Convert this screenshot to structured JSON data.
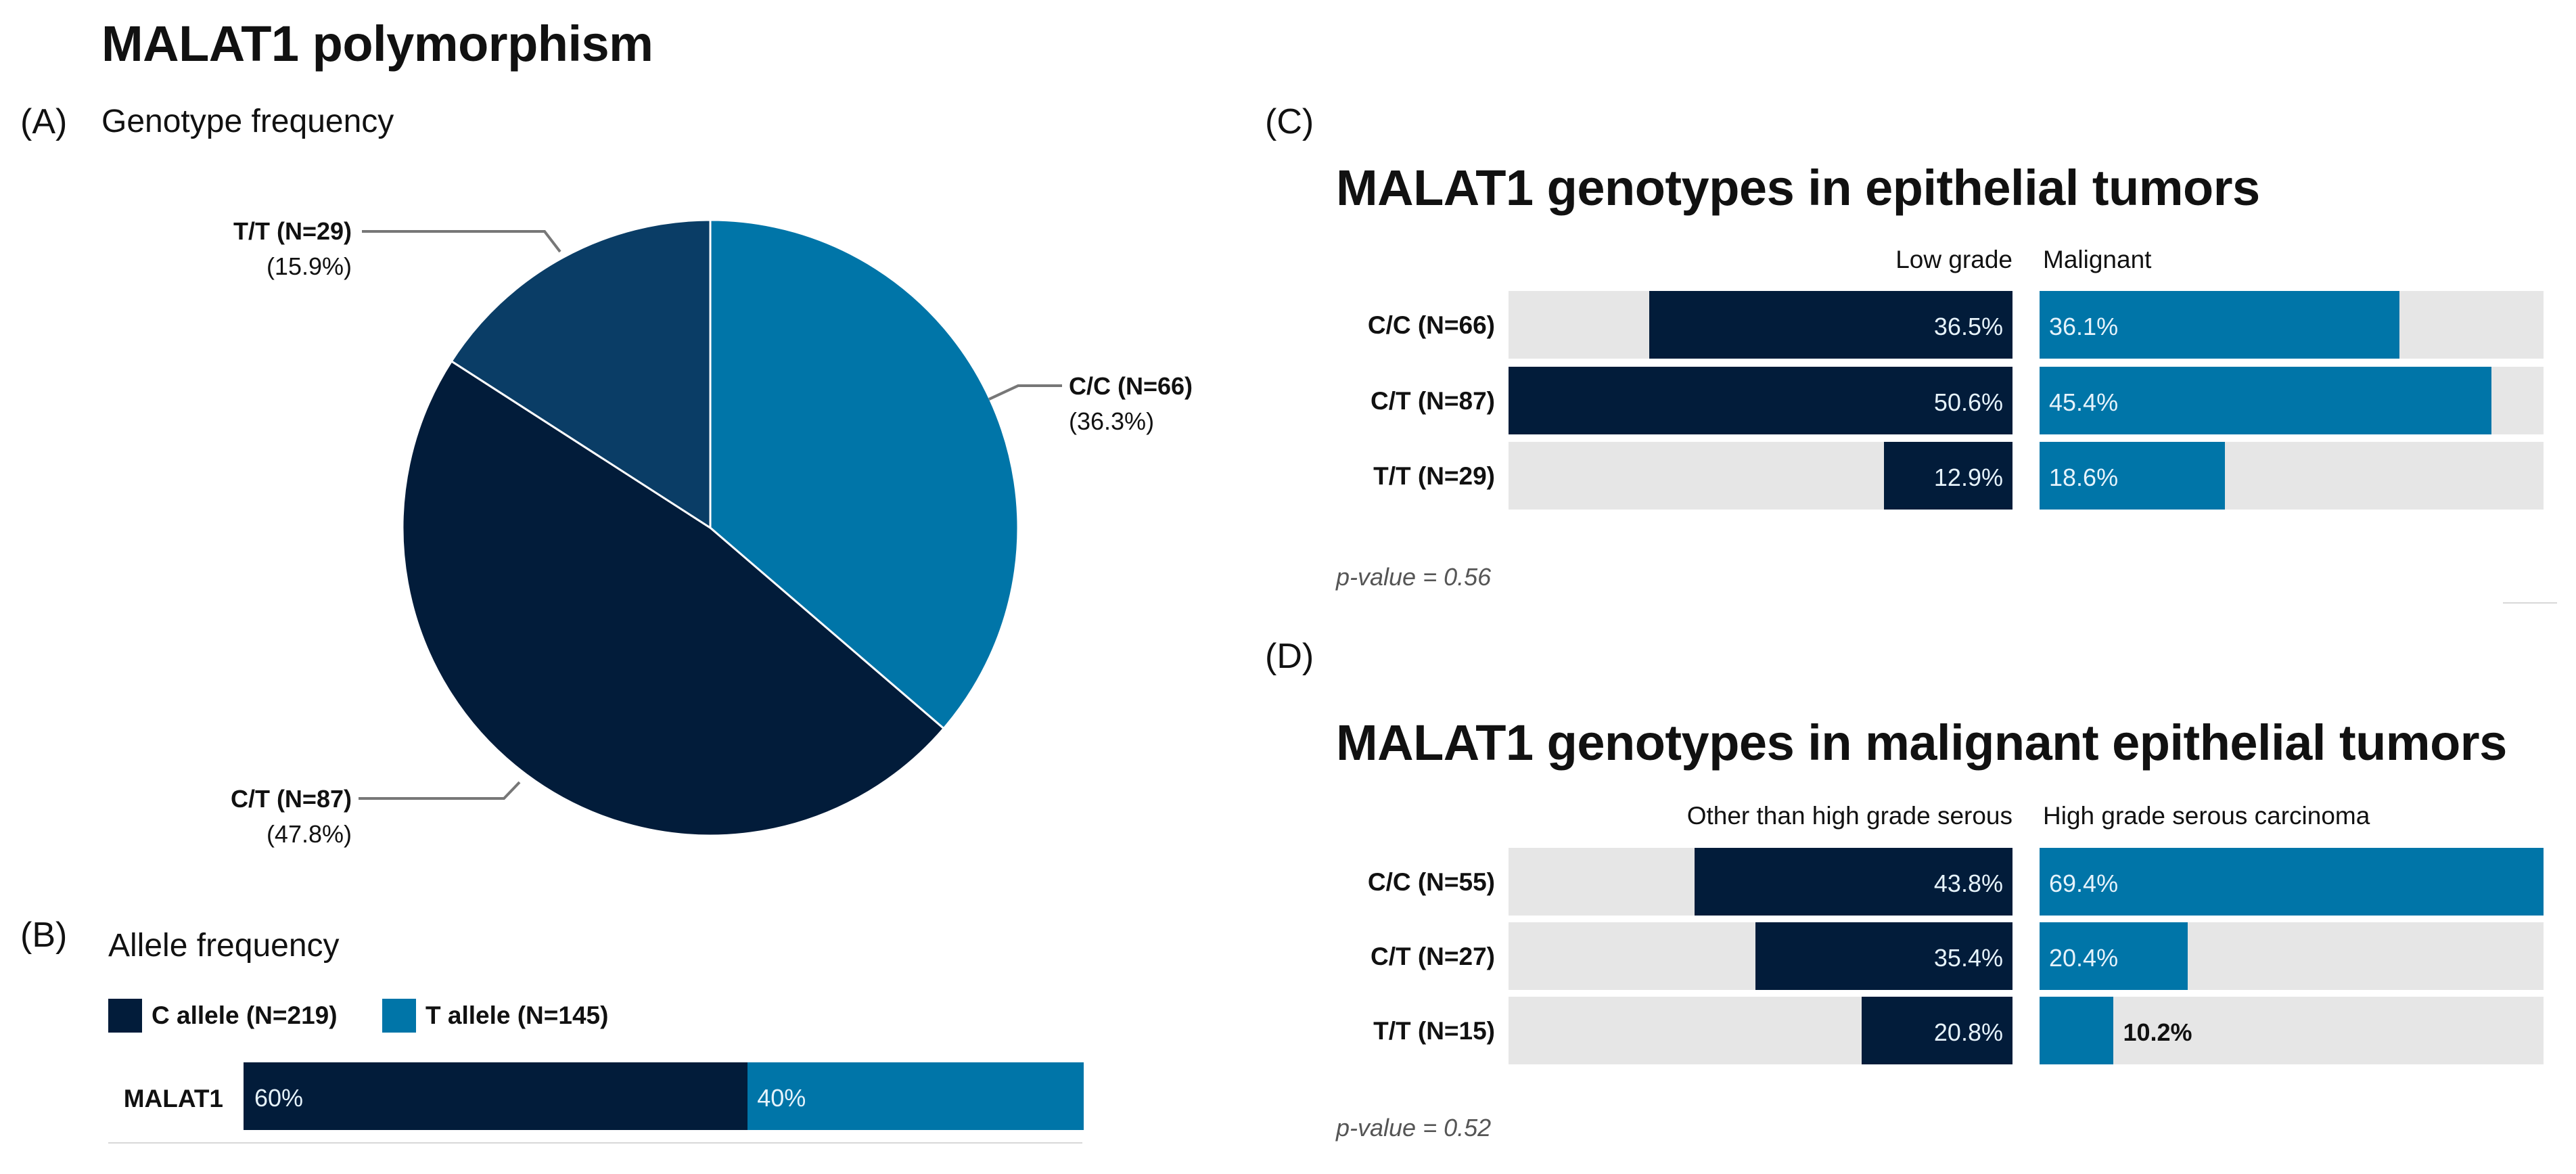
{
  "figure": {
    "title": "MALAT1 polymorphism",
    "panel_labels": [
      "(A)",
      "(B)",
      "(C)",
      "(D)"
    ]
  },
  "colors": {
    "dark": "#021c3a",
    "mid": "#0a3d66",
    "light": "#0075a8",
    "track": "#e6e6e6"
  },
  "chart_data": [
    {
      "type": "pie",
      "panel": "(A)",
      "title": "Genotype frequency",
      "slices": [
        {
          "category": "C/C",
          "n_label": "C/C (N=66)",
          "count": 66,
          "value": 36.3,
          "pct_label": "(36.3%)",
          "color": "#0075a8"
        },
        {
          "category": "C/T",
          "n_label": "C/T (N=87)",
          "count": 87,
          "value": 47.8,
          "pct_label": "(47.8%)",
          "color": "#021c3a"
        },
        {
          "category": "T/T",
          "n_label": "T/T (N=29)",
          "count": 29,
          "value": 15.9,
          "pct_label": "(15.9%)",
          "color": "#0a3d66"
        }
      ]
    },
    {
      "type": "bar",
      "orientation": "horizontal-stacked",
      "panel": "(B)",
      "title": "Allele frequency",
      "categories": [
        "MALAT1"
      ],
      "series": [
        {
          "name": "C allele (N=219)",
          "values": [
            60
          ],
          "labels": [
            "60%"
          ],
          "color": "#021c3a"
        },
        {
          "name": "T allele (N=145)",
          "values": [
            40
          ],
          "labels": [
            "40%"
          ],
          "color": "#0075a8"
        }
      ],
      "xlim": [
        0,
        100
      ]
    },
    {
      "type": "bar",
      "orientation": "horizontal-diverging",
      "panel": "(C)",
      "title": "MALAT1 genotypes in epithelial tumors",
      "categories": [
        "C/C (N=66)",
        "C/T (N=87)",
        "T/T (N=29)"
      ],
      "series": [
        {
          "name": "Low grade",
          "values": [
            36.5,
            50.6,
            12.9
          ],
          "labels": [
            "36.5%",
            "50.6%",
            "12.9%"
          ],
          "color": "#021c3a"
        },
        {
          "name": "Malignant",
          "values": [
            36.1,
            45.4,
            18.6
          ],
          "labels": [
            "36.1%",
            "45.4%",
            "18.6%"
          ],
          "color": "#0075a8"
        }
      ],
      "xlim": [
        0,
        50.6
      ],
      "annotation": "p-value = 0.56"
    },
    {
      "type": "bar",
      "orientation": "horizontal-diverging",
      "panel": "(D)",
      "title": "MALAT1 genotypes in malignant epithelial tumors",
      "categories": [
        "C/C (N=55)",
        "C/T (N=27)",
        "T/T (N=15)"
      ],
      "series": [
        {
          "name": "Other than high grade serous",
          "values": [
            43.8,
            35.4,
            20.8
          ],
          "labels": [
            "43.8%",
            "35.4%",
            "20.8%"
          ],
          "color": "#021c3a"
        },
        {
          "name": "High grade serous carcinoma",
          "values": [
            69.4,
            20.4,
            10.2
          ],
          "labels": [
            "69.4%",
            "20.4%",
            "10.2%"
          ],
          "color": "#0075a8"
        }
      ],
      "xlim": [
        0,
        69.4
      ],
      "annotation": "p-value = 0.52"
    }
  ]
}
